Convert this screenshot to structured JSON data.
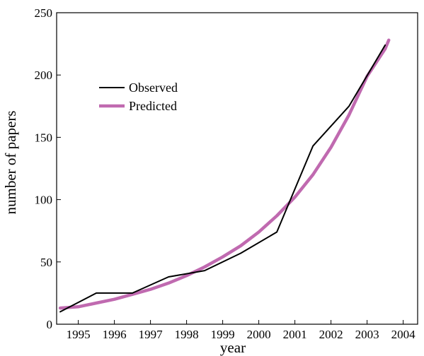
{
  "chart_data": {
    "type": "line",
    "title": "",
    "xlabel": "year",
    "ylabel": "number of papers",
    "xlim": [
      1994.4,
      2004.4
    ],
    "ylim": [
      0,
      250
    ],
    "x_ticks": [
      1995,
      1996,
      1997,
      1998,
      1999,
      2000,
      2001,
      2002,
      2003,
      2004
    ],
    "x_tick_labels": [
      "1995",
      "1996",
      "1997",
      "1998",
      "1999",
      "2000",
      "2001",
      "2002",
      "2003",
      "2004"
    ],
    "y_ticks": [
      0,
      50,
      100,
      150,
      200,
      250
    ],
    "y_tick_labels": [
      "0",
      "50",
      "100",
      "150",
      "200",
      "250"
    ],
    "grid": false,
    "legend_position": "upper-left",
    "series": [
      {
        "name": "Observed",
        "color": "#000000",
        "x": [
          1994.5,
          1995.5,
          1996.5,
          1997.5,
          1998.5,
          1999.5,
          2000.5,
          2001.5,
          2002.5,
          2003.5
        ],
        "y": [
          10,
          25,
          25,
          38,
          43,
          57,
          74,
          143,
          175,
          224
        ]
      },
      {
        "name": "Predicted",
        "color": "#c06ab0",
        "x": [
          1994.5,
          1995.0,
          1995.5,
          1996.0,
          1996.5,
          1997.0,
          1997.5,
          1998.0,
          1998.5,
          1999.0,
          1999.5,
          2000.0,
          2000.5,
          2001.0,
          2001.5,
          2002.0,
          2002.5,
          2003.0,
          2003.5,
          2003.6
        ],
        "y": [
          13,
          14,
          17,
          20,
          24,
          28,
          33,
          39,
          46,
          54,
          63,
          74,
          87,
          102,
          120,
          142,
          168,
          199,
          221,
          228
        ]
      }
    ]
  }
}
